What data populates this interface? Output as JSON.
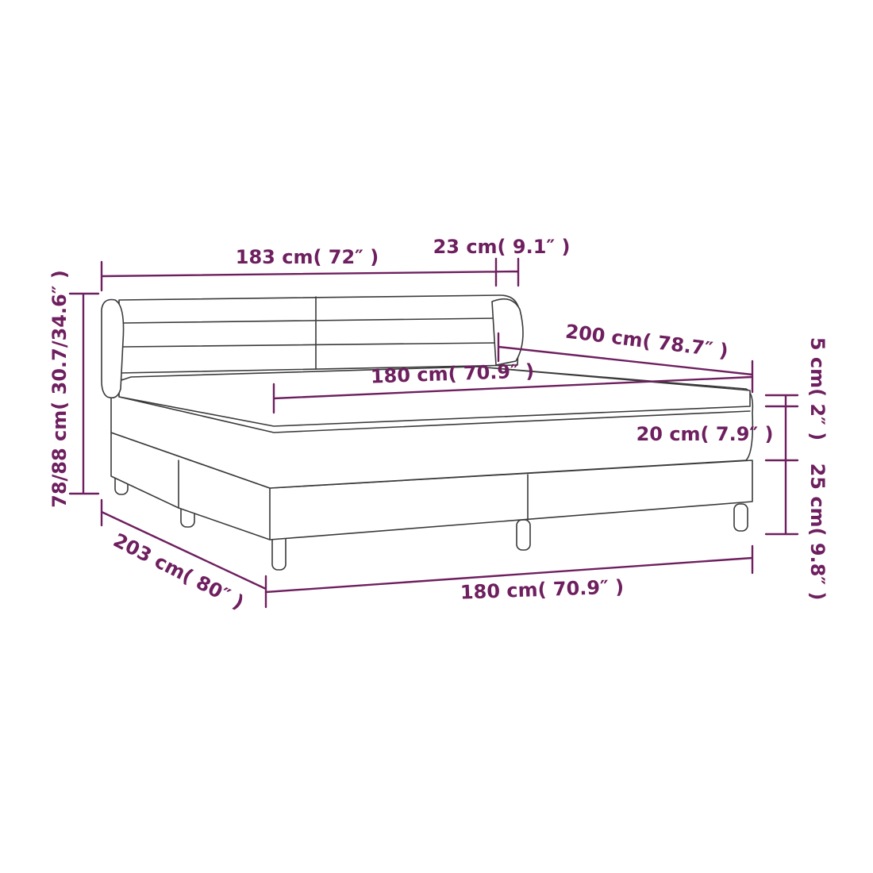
{
  "colors": {
    "dimension": "#6e1f5f",
    "outline": "#3a3a3a"
  },
  "labels": {
    "headboard_width": "183 cm( 72″ )",
    "wing_width": "23 cm( 9.1″ )",
    "length": "200 cm( 78.7″ )",
    "mattress_width": "180 cm( 70.9″ )",
    "mattress_height": "20 cm( 7.9″ )",
    "total_height": "78/88 cm( 30.7/34.6″ )",
    "topper_height": "5 cm( 2″ )",
    "base_height": "25 cm( 9.8″ )",
    "total_length": "203 cm( 80″ )",
    "base_width": "180 cm( 70.9″ )"
  }
}
